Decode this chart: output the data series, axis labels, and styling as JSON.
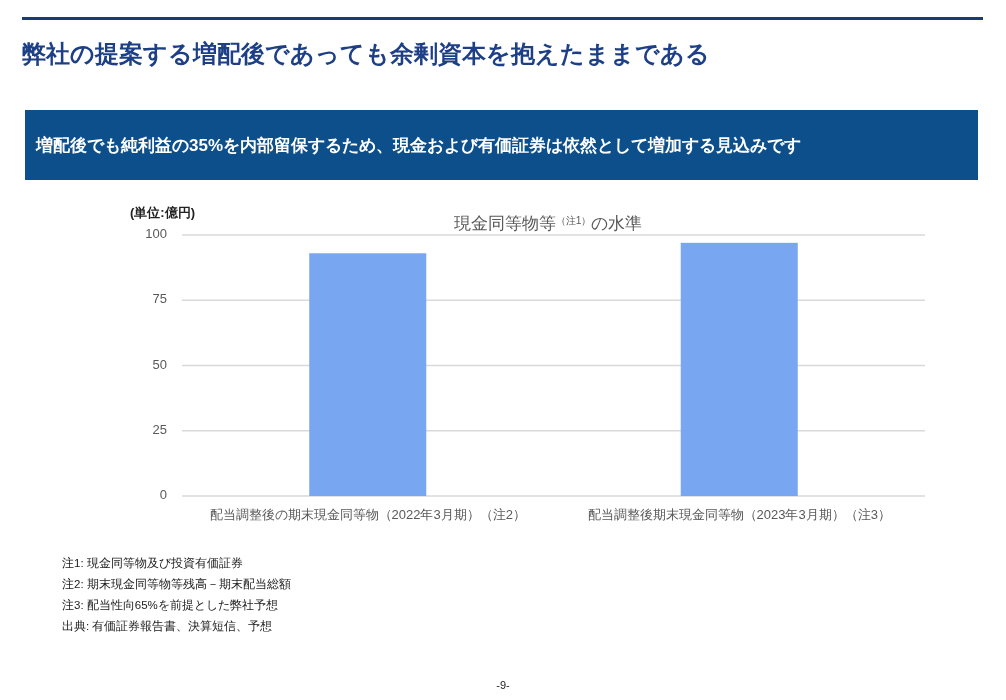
{
  "chart_data": {
    "type": "bar",
    "title": "弊社の提案する増配後であっても余剰資本を抱えたままである",
    "subtitle": "増配後でも純利益の35%を内部留保するため、現金および有価証券は依然として増加する見込みです",
    "ylabel": "(単位:億円)",
    "categories": [
      "配当調整後の期末現金同等物（2022年3月期）（注2）",
      "配当調整後期末現金同等物（2023年3月期）（注3）"
    ],
    "values": [
      93,
      97
    ],
    "color": "#78a6f1",
    "ylim": [
      0,
      100
    ],
    "yticks": [
      0,
      25,
      50,
      75,
      100
    ],
    "grid": "y",
    "annotations": [
      "現金同等物等$^{（注1）}$の水準",
      "注1: 現金同等物及び投資有価証券",
      "注2: 期末現金同等物等残高－期末配当総額",
      "注3: 配当性向65%を前提とした弊社予想",
      "出典: 有価証券報告書、決算短信、予想",
      "-9-"
    ]
  }
}
